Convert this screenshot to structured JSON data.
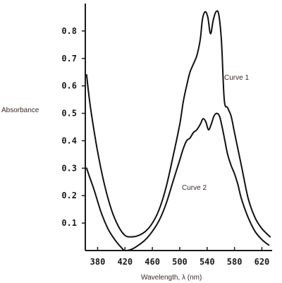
{
  "chart_data": {
    "type": "line",
    "title": "",
    "xlabel": "Wavelength, λ (nm)",
    "ylabel": "Absorbance",
    "xlim": [
      362,
      635
    ],
    "ylim": [
      0,
      0.9
    ],
    "x_ticks": [
      380,
      420,
      460,
      500,
      540,
      580,
      620
    ],
    "x_tick_labels": [
      "380",
      "420",
      "460",
      "500",
      "540",
      "580",
      "620"
    ],
    "y_ticks": [
      0.1,
      0.2,
      0.3,
      0.4,
      0.5,
      0.6,
      0.7,
      0.8
    ],
    "y_tick_labels": [
      "0.1",
      "0.2",
      "0.3",
      "0.4",
      "0.5",
      "0.6",
      "0.7",
      "0.8"
    ],
    "grid": false,
    "legend": "none",
    "series": [
      {
        "name": "Curve 1",
        "x": [
          364,
          367,
          372,
          380,
          390,
          400,
          410,
          420,
          430,
          440,
          450,
          460,
          470,
          480,
          490,
          500,
          505,
          510,
          515,
          520,
          525,
          530,
          533,
          537,
          541,
          545,
          549,
          553,
          557,
          561,
          565,
          570,
          575,
          580,
          590,
          600,
          610,
          620,
          632
        ],
        "y": [
          0.64,
          0.57,
          0.48,
          0.36,
          0.24,
          0.15,
          0.09,
          0.055,
          0.05,
          0.055,
          0.07,
          0.1,
          0.15,
          0.23,
          0.34,
          0.46,
          0.54,
          0.6,
          0.65,
          0.68,
          0.71,
          0.77,
          0.84,
          0.87,
          0.85,
          0.79,
          0.84,
          0.87,
          0.86,
          0.76,
          0.55,
          0.52,
          0.49,
          0.43,
          0.31,
          0.19,
          0.12,
          0.08,
          0.05
        ]
      },
      {
        "name": "Curve 2",
        "x": [
          364,
          368,
          375,
          385,
          395,
          405,
          415,
          420,
          430,
          440,
          450,
          460,
          470,
          480,
          490,
          500,
          505,
          510,
          515,
          520,
          525,
          530,
          534,
          538,
          542,
          546,
          550,
          554,
          558,
          562,
          566,
          570,
          575,
          580,
          585,
          590,
          600,
          610,
          620,
          630
        ],
        "y": [
          0.3,
          0.27,
          0.22,
          0.14,
          0.08,
          0.04,
          0.01,
          0.0,
          0.005,
          0.02,
          0.04,
          0.07,
          0.11,
          0.17,
          0.25,
          0.33,
          0.37,
          0.4,
          0.41,
          0.43,
          0.44,
          0.46,
          0.48,
          0.47,
          0.44,
          0.46,
          0.49,
          0.5,
          0.49,
          0.45,
          0.4,
          0.35,
          0.31,
          0.28,
          0.24,
          0.19,
          0.12,
          0.07,
          0.04,
          0.02
        ]
      }
    ],
    "annotations": [
      {
        "text": "Curve 1",
        "series": "Curve 1"
      },
      {
        "text": "Curve 2",
        "series": "Curve 2"
      }
    ]
  }
}
